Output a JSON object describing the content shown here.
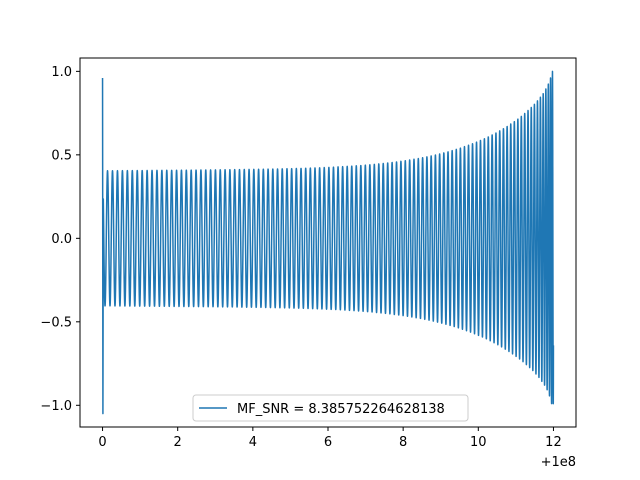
{
  "chart_data": {
    "type": "line",
    "title": "",
    "xlabel": "",
    "ylabel": "",
    "xlim": [
      -0.6,
      12.6
    ],
    "ylim": [
      -1.13,
      1.08
    ],
    "x_offset_label": "+1e8",
    "x_ticks": [
      0,
      2,
      4,
      6,
      8,
      10,
      12
    ],
    "x_tick_labels": [
      "0",
      "2",
      "4",
      "6",
      "8",
      "10",
      "12"
    ],
    "y_ticks": [
      -1.0,
      -0.5,
      0.0,
      0.5,
      1.0
    ],
    "y_tick_labels": [
      "−1.0",
      "−0.5",
      "0.0",
      "0.5",
      "1.0"
    ],
    "grid": false,
    "legend_position": "bottom-center",
    "series": [
      {
        "name": "MF_SNR = 8.385752264628138",
        "color": "#1f77b4",
        "x_range": [
          0,
          12
        ],
        "initial_spike": [
          0.96,
          -1.05
        ],
        "base_amplitude": 0.33,
        "final_amplitude": 1.0
      }
    ]
  }
}
